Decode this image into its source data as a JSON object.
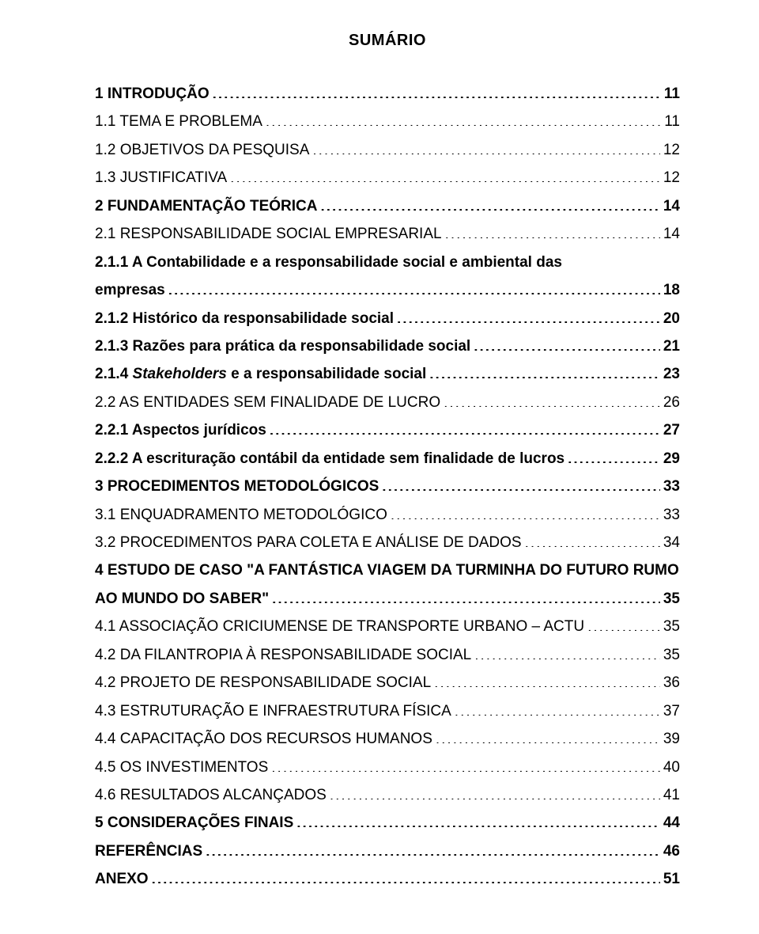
{
  "title": "SUMÁRIO",
  "font": {
    "family": "Arial",
    "body_size_pt": 14,
    "title_size_pt": 15,
    "title_weight": "bold"
  },
  "colors": {
    "text": "#000000",
    "background": "#ffffff"
  },
  "toc": [
    {
      "label": "1 INTRODUÇÃO",
      "page": "11",
      "bold": true
    },
    {
      "label": "1.1 TEMA E PROBLEMA",
      "page": "11"
    },
    {
      "label": "1.2 OBJETIVOS DA PESQUISA",
      "page": "12"
    },
    {
      "label": "1.3 JUSTIFICATIVA",
      "page": "12"
    },
    {
      "label": "2 FUNDAMENTAÇÃO TEÓRICA",
      "page": "14",
      "bold": true
    },
    {
      "label": "2.1 RESPONSABILIDADE SOCIAL EMPRESARIAL",
      "page": "14"
    },
    {
      "label": "2.1.1 A Contabilidade e a responsabilidade social e ambiental das empresas",
      "page": "18",
      "bold": true,
      "wrap": true
    },
    {
      "label": "2.1.2 Histórico da responsabilidade social",
      "page": "20",
      "bold": true
    },
    {
      "label": "2.1.3 Razões para prática da responsabilidade social",
      "page": "21",
      "bold": true
    },
    {
      "label": "2.1.4 Stakeholders e a responsabilidade social",
      "page": "23",
      "bold": true,
      "italicLabelPart": "Stakeholders"
    },
    {
      "label": "2.2 AS ENTIDADES SEM FINALIDADE DE LUCRO",
      "page": "26"
    },
    {
      "label": "2.2.1 Aspectos jurídicos",
      "page": "27",
      "bold": true
    },
    {
      "label": "2.2.2 A escrituração contábil da entidade sem finalidade de lucros",
      "page": "29",
      "bold": true
    },
    {
      "label": "3 PROCEDIMENTOS METODOLÓGICOS",
      "page": "33",
      "bold": true
    },
    {
      "label": "3.1 ENQUADRAMENTO METODOLÓGICO",
      "page": "33"
    },
    {
      "label": "3.2 PROCEDIMENTOS PARA COLETA E ANÁLISE DE DADOS",
      "page": "34"
    },
    {
      "label": "4 ESTUDO DE CASO \"A FANTÁSTICA VIAGEM DA TURMINHA DO FUTURO RUMO AO MUNDO DO SABER\"",
      "page": "35",
      "bold": true,
      "wrap": true
    },
    {
      "label": "4.1 ASSOCIAÇÃO CRICIUMENSE DE TRANSPORTE URBANO – ACTU",
      "page": "35"
    },
    {
      "label": "4.2 DA FILANTROPIA À RESPONSABILIDADE SOCIAL",
      "page": "35"
    },
    {
      "label": "4.2 PROJETO DE RESPONSABILIDADE SOCIAL",
      "page": "36"
    },
    {
      "label": "4.3 ESTRUTURAÇÃO E INFRAESTRUTURA FÍSICA",
      "page": "37"
    },
    {
      "label": "4.4 CAPACITAÇÃO DOS RECURSOS HUMANOS",
      "page": "39"
    },
    {
      "label": "4.5 OS INVESTIMENTOS",
      "page": "40"
    },
    {
      "label": "4.6 RESULTADOS ALCANÇADOS",
      "page": "41"
    },
    {
      "label": "5 CONSIDERAÇÕES FINAIS",
      "page": "44",
      "bold": true
    },
    {
      "label": "REFERÊNCIAS",
      "page": "46",
      "bold": true
    },
    {
      "label": "ANEXO",
      "page": "51",
      "bold": true
    }
  ]
}
